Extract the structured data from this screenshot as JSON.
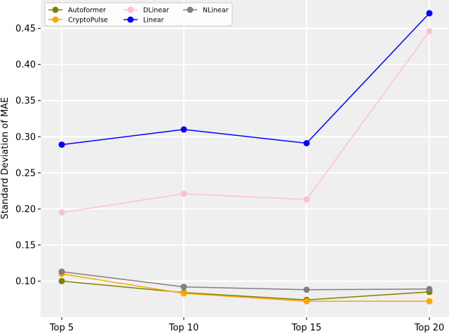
{
  "chart_data": {
    "type": "line",
    "title": "",
    "xlabel": "",
    "ylabel": "Standard Deviation of MAE",
    "categories": [
      "Top 5",
      "Top 10",
      "Top 15",
      "Top 20"
    ],
    "ylim": [
      0.05,
      0.48
    ],
    "yticks": [
      0.1,
      0.15,
      0.2,
      0.25,
      0.3,
      0.35,
      0.4,
      0.45
    ],
    "grid": true,
    "legend_position": "top-left",
    "series": [
      {
        "name": "Autoformer",
        "color": "#808000",
        "values": [
          0.1,
          0.084,
          0.074,
          0.085
        ]
      },
      {
        "name": "CryptoPulse",
        "color": "#ffa500",
        "values": [
          0.11,
          0.083,
          0.072,
          0.072
        ]
      },
      {
        "name": "DLinear",
        "color": "#ffc0cb",
        "values": [
          0.195,
          0.221,
          0.213,
          0.446
        ]
      },
      {
        "name": "Linear",
        "color": "#0000ff",
        "values": [
          0.289,
          0.31,
          0.291,
          0.471
        ]
      },
      {
        "name": "NLinear",
        "color": "#808080",
        "values": [
          0.113,
          0.092,
          0.088,
          0.089
        ]
      }
    ]
  }
}
